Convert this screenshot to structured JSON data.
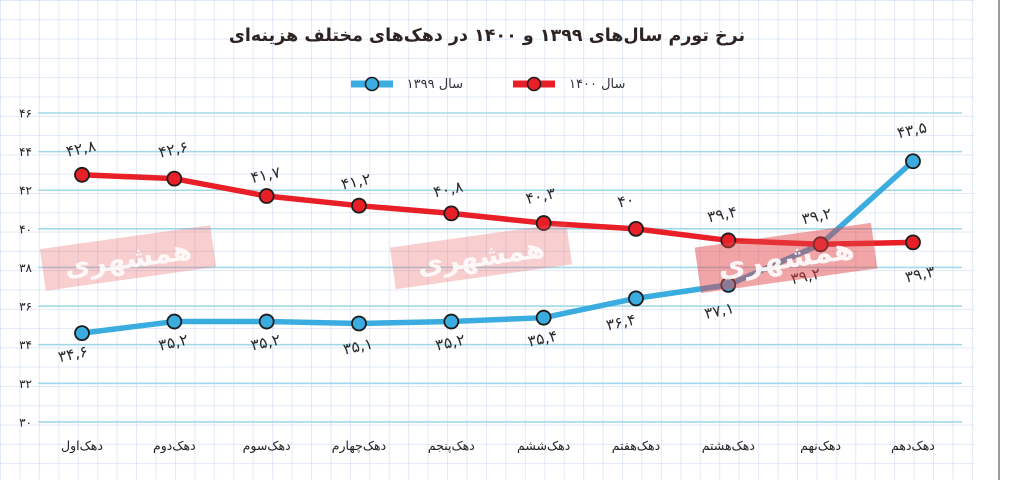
{
  "title": "نرخ تورم سال‌های ۱۳۹۹ و ۱۴۰۰ در دهک‌های مختلف هزینه‌ای",
  "watermark": {
    "text": "همشهری"
  },
  "axis": {
    "y_tick_labels": [
      "۴۶",
      "۴۴",
      "۴۲",
      "۴۰",
      "۳۸",
      "۳۶",
      "۳۴",
      "۳۲",
      "۳۰"
    ],
    "x_categories": [
      "دهک‌اول",
      "دهک‌دوم",
      "دهک‌سوم",
      "دهک‌چهارم",
      "دهک‌پنجم",
      "دهک‌ششم",
      "دهک‌هفتم",
      "دهک‌هشتم",
      "دهک‌نهم",
      "دهک‌دهم"
    ]
  },
  "chart_data": {
    "type": "line",
    "title": "نرخ تورم سال‌های ۱۳۹۹ و ۱۴۰۰ در دهک‌های مختلف هزینه‌ای",
    "categories": [
      "دهک‌اول",
      "دهک‌دوم",
      "دهک‌سوم",
      "دهک‌چهارم",
      "دهک‌پنجم",
      "دهک‌ششم",
      "دهک‌هفتم",
      "دهک‌هشتم",
      "دهک‌نهم",
      "دهک‌دهم"
    ],
    "series": [
      {
        "name": "سال ۱۳۹۹",
        "color": "#3BACDF",
        "values": [
          34.6,
          35.2,
          35.2,
          35.1,
          35.2,
          35.4,
          36.4,
          37.1,
          39.2,
          43.5
        ],
        "labels": [
          "۳۴,۶",
          "۳۵,۲",
          "۳۵,۲",
          "۳۵,۱",
          "۳۵,۲",
          "۳۵,۴",
          "۳۶,۴",
          "۳۷,۱",
          "۳۹,۲",
          "۴۳,۵"
        ]
      },
      {
        "name": "سال ۱۴۰۰",
        "color": "#E81F27",
        "values": [
          42.8,
          42.6,
          41.7,
          41.2,
          40.8,
          40.3,
          40,
          39.4,
          39.2,
          39.3
        ],
        "labels": [
          "۴۲,۸",
          "۴۲,۶",
          "۴۱,۷",
          "۴۱,۲",
          "۴۰,۸",
          "۴۰,۳",
          "۴۰",
          "۳۹,۴",
          "۳۹,۲",
          "۳۹,۳"
        ]
      }
    ],
    "ylim": [
      30,
      46
    ],
    "ytick_step": 2,
    "ytick_labels": [
      "۳۰",
      "۳۲",
      "۳۴",
      "۳۶",
      "۳۸",
      "۴۰",
      "۴۲",
      "۴۴",
      "۴۶"
    ],
    "grid": "graph-paper",
    "legend_position": "top-center"
  }
}
